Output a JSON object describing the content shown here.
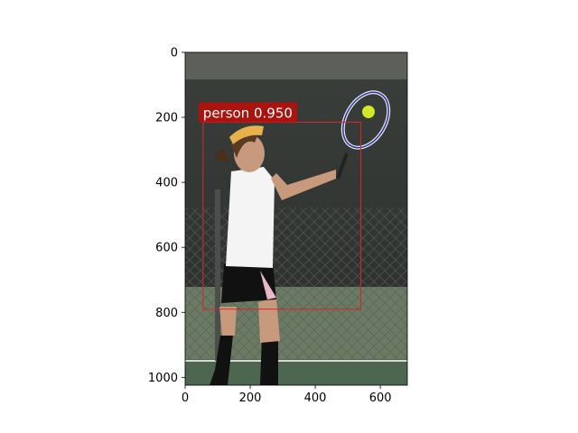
{
  "chart_data": {
    "type": "image-detection",
    "image_extent": {
      "x": [
        0,
        683
      ],
      "y": [
        0,
        1024
      ]
    },
    "x_ticks": [
      0,
      200,
      400,
      600
    ],
    "y_ticks": [
      0,
      200,
      400,
      600,
      800,
      1000
    ],
    "detections": [
      {
        "label": "person 0.950",
        "class": "person",
        "score": 0.95,
        "box": {
          "x0": 55,
          "y0": 215,
          "x1": 540,
          "y1": 790
        }
      }
    ],
    "colors": {
      "box": "#d62728",
      "label_bg": "#b80f0a",
      "label_text": "#ffffff"
    }
  }
}
